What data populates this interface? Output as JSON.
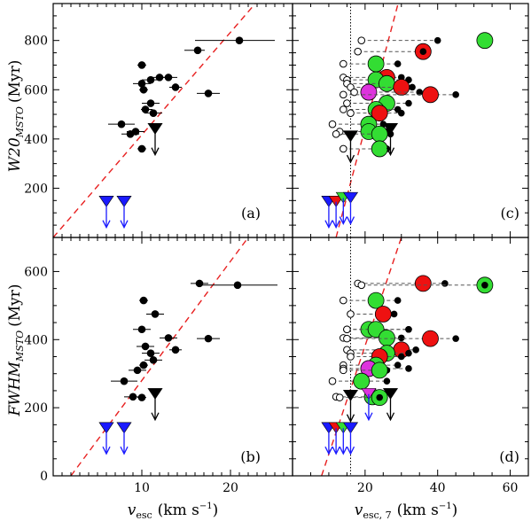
{
  "chart_data": [
    {
      "panel": "(a)",
      "type": "scatter",
      "ylabel_main": "W20",
      "ylabel_sub": "MSTO",
      "ylabel_unit": "(Myr)",
      "xlim": [
        0,
        27
      ],
      "ylim": [
        0,
        950
      ],
      "yticks": [
        200,
        400,
        600,
        800
      ],
      "dashed_line": [
        [
          0,
          0
        ],
        [
          24,
          1000
        ]
      ],
      "points": [
        {
          "x": 21,
          "y": 800,
          "xerr": [
            5,
            4
          ]
        },
        {
          "x": 10,
          "y": 700,
          "xerr": [
            0.5,
            0.5
          ]
        },
        {
          "x": 12,
          "y": 650,
          "xerr": [
            1,
            1
          ]
        },
        {
          "x": 16.3,
          "y": 760,
          "xerr": [
            1.5,
            0.8
          ]
        },
        {
          "x": 10,
          "y": 625,
          "xerr": [
            1,
            1
          ]
        },
        {
          "x": 13,
          "y": 650,
          "xerr": [
            1,
            1
          ]
        },
        {
          "x": 11,
          "y": 640,
          "xerr": [
            1,
            1
          ]
        },
        {
          "x": 13.8,
          "y": 610,
          "xerr": [
            0.7,
            0.7
          ]
        },
        {
          "x": 10.2,
          "y": 600,
          "xerr": [
            0.5,
            0.5
          ]
        },
        {
          "x": 17.5,
          "y": 585,
          "xerr": [
            1.3,
            1.3
          ]
        },
        {
          "x": 11,
          "y": 545,
          "xerr": [
            1,
            1
          ]
        },
        {
          "x": 10.4,
          "y": 520,
          "xerr": [
            0.5,
            0.8
          ]
        },
        {
          "x": 11.3,
          "y": 505,
          "xerr": [
            1,
            1
          ]
        },
        {
          "x": 7.7,
          "y": 460,
          "xerr": [
            1.5,
            1.5
          ]
        },
        {
          "x": 9.3,
          "y": 430,
          "xerr": [
            1,
            1
          ]
        },
        {
          "x": 8.7,
          "y": 420,
          "xerr": [
            1,
            1
          ]
        },
        {
          "x": 10,
          "y": 360,
          "xerr": [
            0.5,
            0.5
          ]
        }
      ],
      "upper_limits": [
        {
          "x": 11.5,
          "y": 440,
          "color": "#000000"
        },
        {
          "x": 6,
          "y": 145,
          "color": "#1a1aff"
        },
        {
          "x": 8,
          "y": 145,
          "color": "#1a1aff"
        }
      ]
    },
    {
      "panel": "(b)",
      "type": "scatter",
      "ylabel_main": "FWHM",
      "ylabel_sub": "MSTO",
      "ylabel_unit": "(Myr)",
      "xlabel_main": "v",
      "xlabel_sub": "esc",
      "xlabel_unit": "(km s",
      "xlabel_exp": "−1",
      "xlabel_close": ")",
      "xlim": [
        0,
        27
      ],
      "ylim": [
        0,
        700
      ],
      "yticks": [
        0,
        200,
        400,
        600
      ],
      "xticks": [
        10,
        20
      ],
      "dashed_line": [
        [
          2,
          0
        ],
        [
          22,
          700
        ]
      ],
      "points": [
        {
          "x": 16.5,
          "y": 565,
          "xerr": [
            1,
            1
          ]
        },
        {
          "x": 20.8,
          "y": 560,
          "xerr": [
            4.5,
            4.5
          ]
        },
        {
          "x": 10.2,
          "y": 515,
          "xerr": [
            0.5,
            0.5
          ]
        },
        {
          "x": 11.5,
          "y": 475,
          "xerr": [
            1,
            1
          ]
        },
        {
          "x": 10,
          "y": 430,
          "xerr": [
            1,
            1
          ]
        },
        {
          "x": 13,
          "y": 405,
          "xerr": [
            1,
            1
          ]
        },
        {
          "x": 17.5,
          "y": 403,
          "xerr": [
            1.3,
            1.3
          ]
        },
        {
          "x": 10.4,
          "y": 380,
          "xerr": [
            1,
            1
          ]
        },
        {
          "x": 13.8,
          "y": 370,
          "xerr": [
            0.7,
            0.7
          ]
        },
        {
          "x": 11,
          "y": 360,
          "xerr": [
            1,
            1
          ]
        },
        {
          "x": 11.3,
          "y": 340,
          "xerr": [
            1,
            1
          ]
        },
        {
          "x": 10.2,
          "y": 325,
          "xerr": [
            0.5,
            0.5
          ]
        },
        {
          "x": 9.5,
          "y": 310,
          "xerr": [
            1,
            1
          ]
        },
        {
          "x": 8,
          "y": 278,
          "xerr": [
            1.5,
            1.5
          ]
        },
        {
          "x": 9,
          "y": 232,
          "xerr": [
            1,
            1
          ]
        },
        {
          "x": 10,
          "y": 230,
          "xerr": [
            0.5,
            0.5
          ]
        }
      ],
      "upper_limits": [
        {
          "x": 11.5,
          "y": 240,
          "color": "#000000"
        },
        {
          "x": 6,
          "y": 140,
          "color": "#1a1aff"
        },
        {
          "x": 8,
          "y": 140,
          "color": "#1a1aff"
        }
      ]
    },
    {
      "panel": "(c)",
      "type": "scatter",
      "xlim": [
        0,
        65
      ],
      "ylim": [
        0,
        950
      ],
      "vline_x": 16,
      "dashed_line": [
        [
          12,
          0
        ],
        [
          30,
          1000
        ]
      ],
      "rows": [
        {
          "y": 800,
          "x": [
            19,
            40,
            53
          ],
          "big": {
            "x": 53,
            "color": "#33dd33"
          }
        },
        {
          "y": 755,
          "x": [
            18,
            36
          ],
          "big": {
            "x": 36,
            "color": "#ee1111"
          }
        },
        {
          "y": 705,
          "x": [
            14,
            29
          ],
          "big": {
            "x": 23,
            "color": "#33dd33"
          }
        },
        {
          "y": 650,
          "x": [
            14,
            30
          ],
          "big": {
            "x": 26,
            "color": "#ee1111"
          }
        },
        {
          "y": 640,
          "x": [
            15,
            32
          ],
          "big": {
            "x": 23,
            "color": "#33dd33"
          }
        },
        {
          "y": 625,
          "x": [
            15,
            30
          ],
          "big": {
            "x": 26,
            "color": "#33dd33"
          }
        },
        {
          "y": 610,
          "x": [
            16,
            33
          ],
          "big": {
            "x": 30,
            "color": "#ee1111"
          }
        },
        {
          "y": 590,
          "x": [
            17,
            35
          ],
          "big": {
            "x": 21,
            "color": "#dd33dd"
          }
        },
        {
          "y": 580,
          "x": [
            14,
            45
          ],
          "big": {
            "x": 38,
            "color": "#ee1111"
          }
        },
        {
          "y": 545,
          "x": [
            15,
            32
          ],
          "big": {
            "x": 26,
            "color": "#33dd33"
          }
        },
        {
          "y": 520,
          "x": [
            14,
            29
          ],
          "big": {
            "x": 23,
            "color": "#33dd33"
          }
        },
        {
          "y": 505,
          "x": [
            16,
            30
          ],
          "big": {
            "x": 24,
            "color": "#ee1111"
          }
        },
        {
          "y": 460,
          "x": [
            11,
            25
          ],
          "big": {
            "x": 21,
            "color": "#33dd33"
          }
        },
        {
          "y": 430,
          "x": [
            13,
            26
          ],
          "big": {
            "x": 21,
            "color": "#33dd33"
          }
        },
        {
          "y": 420,
          "x": [
            12,
            27
          ],
          "big": {
            "x": 24,
            "color": "#33dd33"
          }
        },
        {
          "y": 360,
          "x": [
            14,
            26
          ],
          "big": {
            "x": 24,
            "color": "#33dd33"
          }
        }
      ],
      "upper_limits": [
        {
          "x": 16,
          "y": 410,
          "color": "#000000"
        },
        {
          "x": 27,
          "y": 440,
          "color": "#000000"
        },
        {
          "x": 10,
          "y": 145,
          "color": "#1a1aff"
        },
        {
          "x": 12,
          "y": 145,
          "color": "#ee1111"
        },
        {
          "x": 14,
          "y": 160,
          "color": "#33dd33"
        },
        {
          "x": 16,
          "y": 160,
          "color": "#1a1aff"
        }
      ]
    },
    {
      "panel": "(d)",
      "type": "scatter",
      "xlabel_main": "v",
      "xlabel_sub": "esc, 7",
      "xlabel_unit": "(km s",
      "xlabel_exp": "−1",
      "xlabel_close": ")",
      "xlim": [
        0,
        65
      ],
      "ylim": [
        0,
        700
      ],
      "xticks": [
        20,
        40,
        60
      ],
      "vline_x": 16,
      "dashed_line": [
        [
          8,
          0
        ],
        [
          30,
          700
        ]
      ],
      "rows": [
        {
          "y": 565,
          "x": [
            18,
            42
          ],
          "big": {
            "x": 36,
            "color": "#ee1111"
          }
        },
        {
          "y": 560,
          "x": [
            19,
            53
          ],
          "big": {
            "x": 53,
            "color": "#33dd33"
          }
        },
        {
          "y": 515,
          "x": [
            14,
            29
          ],
          "big": {
            "x": 23,
            "color": "#33dd33"
          }
        },
        {
          "y": 475,
          "x": [
            16,
            28
          ],
          "big": {
            "x": 25,
            "color": "#ee1111"
          }
        },
        {
          "y": 430,
          "x": [
            15,
            32
          ],
          "big": {
            "x": 21,
            "color": "#33dd33"
          }
        },
        {
          "y": 430,
          "x": [
            15,
            32
          ],
          "big": {
            "x": 23,
            "color": "#33dd33"
          }
        },
        {
          "y": 405,
          "x": [
            14,
            30
          ],
          "big": {
            "x": 26,
            "color": "#33dd33"
          }
        },
        {
          "y": 403,
          "x": [
            15,
            45
          ],
          "big": {
            "x": 38,
            "color": "#ee1111"
          }
        },
        {
          "y": 370,
          "x": [
            15,
            34
          ],
          "big": {
            "x": 30,
            "color": "#ee1111"
          }
        },
        {
          "y": 360,
          "x": [
            16,
            32
          ],
          "big": {
            "x": 26,
            "color": "#33dd33"
          }
        },
        {
          "y": 350,
          "x": [
            16,
            30
          ],
          "big": {
            "x": 24,
            "color": "#ee1111"
          }
        },
        {
          "y": 325,
          "x": [
            14,
            29
          ],
          "big": {
            "x": 23,
            "color": "#33dd33"
          }
        },
        {
          "y": 315,
          "x": [
            14,
            32
          ],
          "big": {
            "x": 21,
            "color": "#dd33dd"
          }
        },
        {
          "y": 310,
          "x": [
            14,
            26
          ],
          "big": {
            "x": 24,
            "color": "#33dd33"
          }
        },
        {
          "y": 278,
          "x": [
            11,
            26
          ],
          "big": {
            "x": 19,
            "color": "#33dd33"
          }
        },
        {
          "y": 232,
          "x": [
            12,
            25
          ],
          "big": {
            "x": 22,
            "color": "#33dd33"
          }
        },
        {
          "y": 230,
          "x": [
            13,
            24
          ],
          "big": {
            "x": 24,
            "color": "#33dd33"
          }
        }
      ],
      "upper_limits": [
        {
          "x": 16,
          "y": 235,
          "color": "#000000"
        },
        {
          "x": 21,
          "y": 240,
          "color": "#dd33dd"
        },
        {
          "x": 27,
          "y": 240,
          "color": "#000000"
        },
        {
          "x": 10,
          "y": 140,
          "color": "#1a1aff"
        },
        {
          "x": 12,
          "y": 140,
          "color": "#ee1111"
        },
        {
          "x": 14,
          "y": 140,
          "color": "#33dd33"
        },
        {
          "x": 16,
          "y": 140,
          "color": "#1a1aff"
        }
      ]
    }
  ]
}
